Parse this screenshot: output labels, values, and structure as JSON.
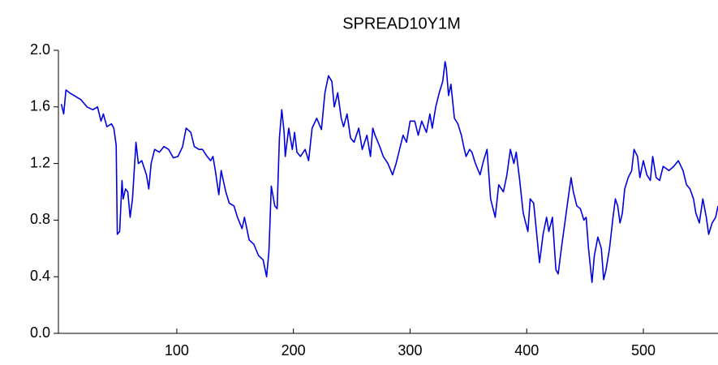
{
  "chart_data": {
    "type": "line",
    "title": "SPREAD10Y1M",
    "x": [
      1,
      3,
      5,
      8,
      12,
      18,
      23,
      28,
      32,
      35,
      37,
      40,
      44,
      46,
      48,
      49,
      51,
      53,
      54,
      56,
      58,
      60,
      62,
      65,
      67,
      70,
      74,
      76,
      78,
      81,
      85,
      89,
      93,
      97,
      101,
      105,
      108,
      112,
      115,
      119,
      122,
      126,
      129,
      131,
      133,
      136,
      138,
      142,
      145,
      149,
      152,
      156,
      158,
      162,
      166,
      170,
      174,
      177,
      179,
      181,
      184,
      186,
      188,
      190,
      192,
      193,
      196,
      199,
      201,
      203,
      206,
      210,
      213,
      216,
      220,
      224,
      227,
      230,
      233,
      235,
      238,
      241,
      243,
      246,
      249,
      252,
      256,
      259,
      263,
      266,
      268,
      270,
      274,
      277,
      281,
      285,
      288,
      291,
      294,
      297,
      300,
      304,
      307,
      310,
      314,
      317,
      319,
      322,
      325,
      328,
      330,
      331,
      333,
      335,
      338,
      341,
      344,
      346,
      348,
      351,
      353,
      356,
      360,
      363,
      366,
      369,
      373,
      376,
      380,
      383,
      386,
      389,
      391,
      394,
      397,
      401,
      403,
      406,
      408,
      411,
      414,
      417,
      419,
      422,
      425,
      427,
      430,
      433,
      435,
      438,
      440,
      443,
      446,
      449,
      451,
      453,
      456,
      458,
      461,
      464,
      466,
      468,
      471,
      474,
      476,
      478,
      480,
      482,
      484,
      487,
      490,
      492,
      495,
      497,
      500,
      503,
      506,
      508,
      511,
      514,
      517,
      522,
      526,
      530,
      534,
      537,
      540,
      543,
      545,
      548,
      551,
      554,
      556,
      559,
      562,
      564
    ],
    "series": [
      {
        "name": "SPREAD10Y1M",
        "color": "#0000e0",
        "values": [
          1.62,
          1.55,
          1.72,
          1.7,
          1.68,
          1.65,
          1.6,
          1.58,
          1.6,
          1.5,
          1.55,
          1.46,
          1.48,
          1.45,
          1.33,
          0.7,
          0.72,
          1.08,
          0.95,
          1.02,
          1.0,
          0.82,
          0.95,
          1.35,
          1.2,
          1.22,
          1.12,
          1.02,
          1.2,
          1.3,
          1.28,
          1.32,
          1.3,
          1.24,
          1.25,
          1.32,
          1.45,
          1.42,
          1.32,
          1.3,
          1.3,
          1.25,
          1.22,
          1.25,
          1.15,
          0.98,
          1.15,
          1.0,
          0.92,
          0.9,
          0.82,
          0.74,
          0.82,
          0.66,
          0.63,
          0.55,
          0.52,
          0.4,
          0.58,
          1.04,
          0.9,
          0.88,
          1.38,
          1.58,
          1.42,
          1.25,
          1.45,
          1.3,
          1.42,
          1.28,
          1.25,
          1.3,
          1.22,
          1.45,
          1.52,
          1.44,
          1.7,
          1.82,
          1.78,
          1.6,
          1.7,
          1.52,
          1.46,
          1.55,
          1.38,
          1.35,
          1.45,
          1.3,
          1.4,
          1.25,
          1.45,
          1.4,
          1.32,
          1.25,
          1.2,
          1.12,
          1.2,
          1.3,
          1.4,
          1.35,
          1.5,
          1.5,
          1.4,
          1.5,
          1.42,
          1.55,
          1.45,
          1.6,
          1.7,
          1.78,
          1.92,
          1.88,
          1.68,
          1.76,
          1.52,
          1.48,
          1.4,
          1.32,
          1.25,
          1.3,
          1.28,
          1.2,
          1.12,
          1.22,
          1.3,
          0.95,
          0.82,
          1.05,
          1.0,
          1.12,
          1.3,
          1.2,
          1.28,
          1.08,
          0.85,
          0.72,
          0.95,
          0.92,
          0.75,
          0.5,
          0.7,
          0.82,
          0.72,
          0.82,
          0.45,
          0.42,
          0.62,
          0.8,
          0.92,
          1.1,
          1.0,
          0.9,
          0.88,
          0.8,
          0.82,
          0.6,
          0.36,
          0.55,
          0.68,
          0.6,
          0.38,
          0.45,
          0.6,
          0.82,
          0.95,
          0.9,
          0.78,
          0.85,
          1.02,
          1.1,
          1.15,
          1.3,
          1.25,
          1.1,
          1.22,
          1.12,
          1.08,
          1.25,
          1.1,
          1.08,
          1.18,
          1.15,
          1.18,
          1.22,
          1.15,
          1.05,
          1.02,
          0.95,
          0.85,
          0.78,
          0.95,
          0.82,
          0.7,
          0.78,
          0.82,
          0.9
        ]
      }
    ],
    "xlim": [
      -1.5,
      564
    ],
    "xticks": [
      100,
      200,
      300,
      400,
      500
    ],
    "ylim": [
      0,
      2
    ],
    "yticks": [
      {
        "value": 0,
        "label": "0.0"
      },
      0.4,
      0.8,
      1.2,
      1.6,
      {
        "value": 2,
        "label": "2.0"
      }
    ]
  }
}
